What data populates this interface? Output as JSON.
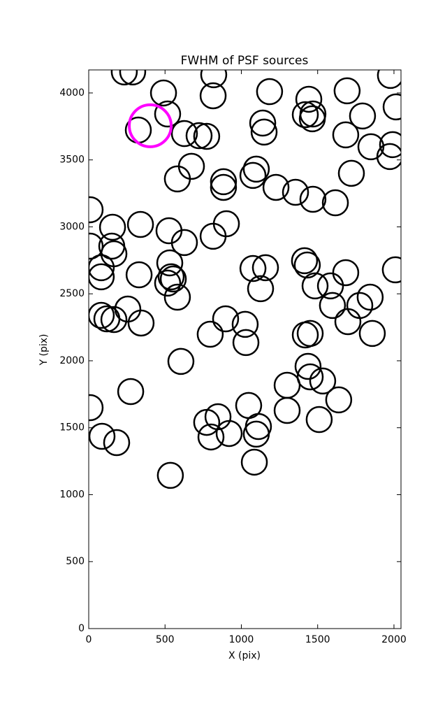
{
  "chart_data": {
    "type": "scatter",
    "title": "FWHM of PSF sources",
    "xlabel": "X (pix)",
    "ylabel": "Y (pix)",
    "xlim": [
      0,
      2046
    ],
    "ylim": [
      0,
      4172
    ],
    "xticks": [
      0,
      500,
      1000,
      1500,
      2000
    ],
    "yticks": [
      0,
      500,
      1000,
      1500,
      2000,
      2500,
      3000,
      3500,
      4000
    ],
    "series": [
      {
        "color": "#000000",
        "x": [
          233,
          288,
          819,
          1977,
          490,
          815,
          1185,
          1693,
          1442,
          517,
          325,
          1140,
          1149,
          1469,
          1465,
          1419,
          1794,
          2014,
          627,
          723,
          773,
          1684,
          1849,
          1991,
          1973,
          673,
          581,
          883,
          883,
          1098,
          1076,
          1721,
          1227,
          1355,
          1469,
          1616,
          9,
          156,
          339,
          902,
          526,
          815,
          627,
          9,
          151,
          165,
          531,
          82,
          82,
          330,
          1076,
          1158,
          1414,
          1432,
          1684,
          2009,
          540,
          517,
          554,
          1126,
          1483,
          1584,
          581,
          1844,
          1597,
          1776,
          82,
          119,
          165,
          256,
          343,
          897,
          1025,
          1698,
          796,
          1030,
          1419,
          1451,
          1858,
          604,
          1437,
          1451,
          1533,
          1300,
          1638,
          275,
          9,
          1048,
          1300,
          1510,
          847,
          773,
          1112,
          1098,
          920,
          801,
          87,
          183,
          1085,
          535
        ],
        "y": [
          4157,
          4157,
          4136,
          4131,
          4000,
          3979,
          4010,
          4016,
          3953,
          3843,
          3723,
          3775,
          3708,
          3843,
          3807,
          3838,
          3828,
          3896,
          3697,
          3681,
          3676,
          3687,
          3598,
          3614,
          3525,
          3452,
          3358,
          3337,
          3295,
          3431,
          3384,
          3400,
          3295,
          3258,
          3206,
          3180,
          3128,
          2997,
          3018,
          3023,
          2971,
          2930,
          2883,
          2856,
          2856,
          2799,
          2731,
          2695,
          2627,
          2642,
          2689,
          2695,
          2747,
          2715,
          2658,
          2679,
          2627,
          2580,
          2611,
          2538,
          2559,
          2559,
          2475,
          2475,
          2413,
          2413,
          2339,
          2313,
          2308,
          2386,
          2282,
          2313,
          2272,
          2292,
          2198,
          2136,
          2193,
          2204,
          2204,
          1995,
          1958,
          1880,
          1849,
          1817,
          1708,
          1770,
          1650,
          1666,
          1629,
          1561,
          1582,
          1540,
          1509,
          1452,
          1457,
          1431,
          1436,
          1389,
          1243,
          1144
        ]
      },
      {
        "color": "#ff00ff",
        "x": [
          403
        ],
        "y": [
          3755
        ]
      }
    ]
  }
}
